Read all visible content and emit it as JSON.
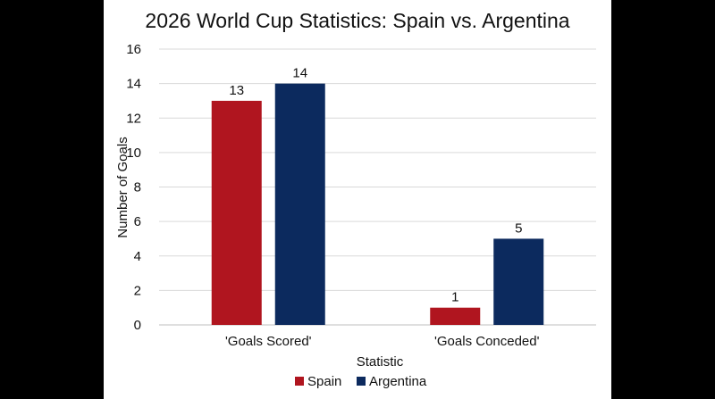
{
  "chart_data": {
    "type": "bar",
    "title": "2026 World Cup Statistics: Spain vs. Argentina",
    "xlabel": "Statistic",
    "ylabel": "Number of Goals",
    "categories": [
      "'Goals Scored'",
      "'Goals Conceded'"
    ],
    "series": [
      {
        "name": "Spain",
        "values": [
          13,
          1
        ],
        "color": "#b0151f"
      },
      {
        "name": "Argentina",
        "values": [
          14,
          5
        ],
        "color": "#0c2a5e"
      }
    ],
    "ylim": [
      0,
      16
    ],
    "yticks": [
      0,
      2,
      4,
      6,
      8,
      10,
      12,
      14,
      16
    ],
    "grid": true,
    "legend": "bottom-center"
  }
}
